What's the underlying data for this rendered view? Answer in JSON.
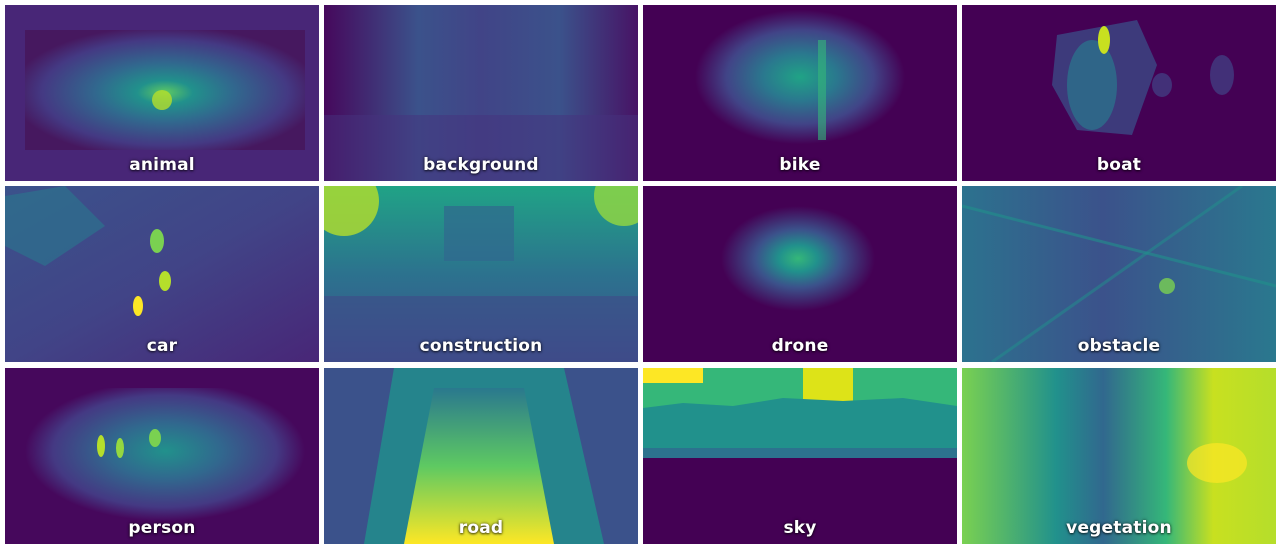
{
  "heatmaps": [
    {
      "label": "animal"
    },
    {
      "label": "background"
    },
    {
      "label": "bike"
    },
    {
      "label": "boat"
    },
    {
      "label": "car"
    },
    {
      "label": "construction"
    },
    {
      "label": "drone"
    },
    {
      "label": "obstacle"
    },
    {
      "label": "person"
    },
    {
      "label": "road"
    },
    {
      "label": "sky"
    },
    {
      "label": "vegetation"
    }
  ],
  "colormap": {
    "name": "viridis",
    "low": "#440154",
    "mid": "#21918c",
    "high": "#fde725"
  }
}
